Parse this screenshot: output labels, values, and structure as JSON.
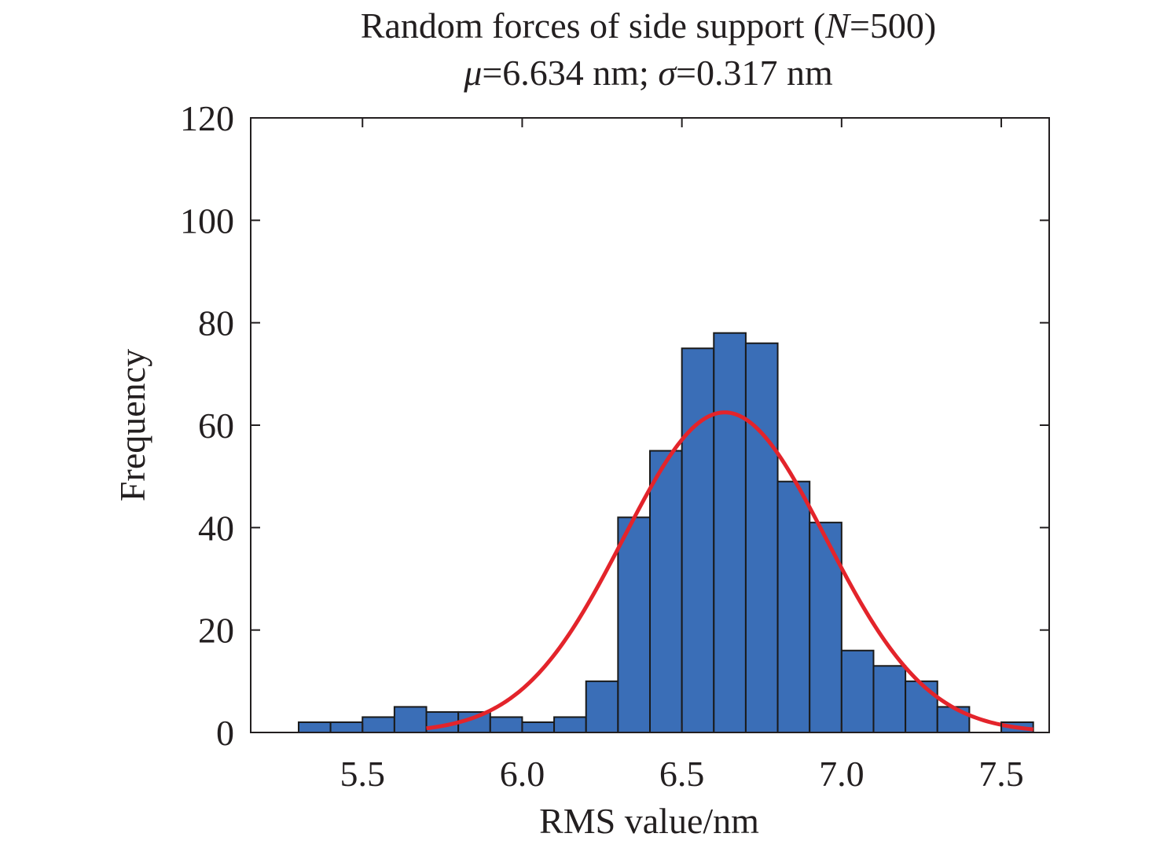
{
  "chart_data": {
    "type": "bar",
    "title": "Random forces of side support (N=500)",
    "title_parts": {
      "prefix": "Random forces of side support (",
      "n_symbol": "N",
      "suffix": "=500)"
    },
    "subtitle": "μ=6.634 nm; σ=0.317 nm",
    "subtitle_parts": {
      "mu_symbol": "μ",
      "mu_text": "=6.634 nm; ",
      "sigma_symbol": "σ",
      "sigma_text": "=0.317 nm"
    },
    "xlabel": "RMS value/nm",
    "ylabel": "Frequency",
    "xlim": [
      5.15,
      7.65
    ],
    "ylim": [
      0,
      120
    ],
    "xticks": [
      5.5,
      6.0,
      6.5,
      7.0,
      7.5
    ],
    "xtick_labels": [
      "5.5",
      "6.0",
      "6.5",
      "7.0",
      "7.5"
    ],
    "yticks": [
      0,
      20,
      40,
      60,
      80,
      100,
      120
    ],
    "ytick_labels": [
      "0",
      "20",
      "40",
      "60",
      "80",
      "100",
      "120"
    ],
    "grid": false,
    "bin_edges": [
      5.3,
      5.4,
      5.5,
      5.6,
      5.7,
      5.8,
      5.9,
      6.0,
      6.1,
      6.2,
      6.3,
      6.4,
      6.5,
      6.6,
      6.7,
      6.8,
      6.9,
      7.0,
      7.1,
      7.2,
      7.3,
      7.4,
      7.5,
      7.6
    ],
    "values": [
      2,
      2,
      3,
      5,
      4,
      4,
      3,
      2,
      3,
      10,
      42,
      55,
      75,
      78,
      76,
      49,
      41,
      16,
      13,
      10,
      5,
      0,
      2
    ],
    "fit": {
      "type": "normal",
      "mean": 6.634,
      "sigma": 0.317,
      "peak": 62.5,
      "x_range": [
        5.7,
        7.6
      ]
    },
    "colors": {
      "bar_fill": "#3a6eb7",
      "bar_edge": "#1a1a1a",
      "fit_line": "#e3242b",
      "axis": "#231f20"
    }
  }
}
